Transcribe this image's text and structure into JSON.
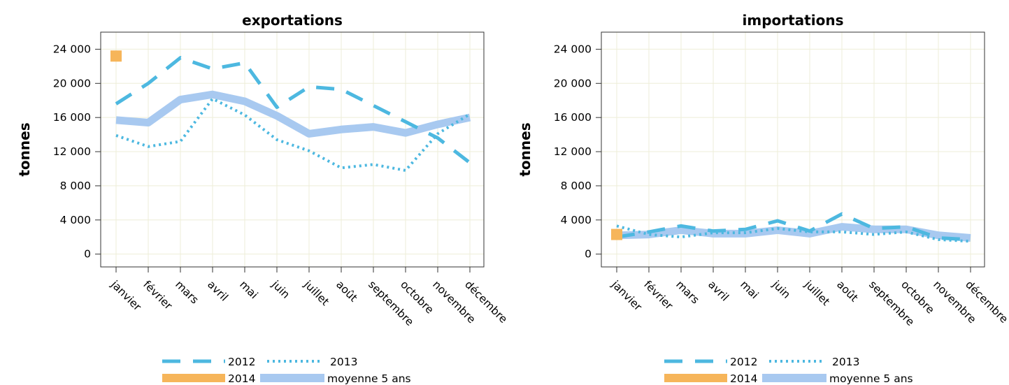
{
  "chart_data": [
    {
      "type": "line",
      "title": "exportations",
      "ylabel": "tonnes",
      "ylim": [
        -1500,
        26000
      ],
      "yticks": [
        0,
        4000,
        8000,
        12000,
        16000,
        20000,
        24000
      ],
      "ytick_labels": [
        "0",
        "4 000",
        "8 000",
        "12 000",
        "16 000",
        "20 000",
        "24 000"
      ],
      "categories": [
        "janvier",
        "février",
        "mars",
        "avril",
        "mai",
        "juin",
        "juillet",
        "août",
        "septembre",
        "octobre",
        "novembre",
        "décembre"
      ],
      "grid": true,
      "series": [
        {
          "name": "2012",
          "style": "dashed",
          "values": [
            17600,
            20000,
            23000,
            21700,
            22400,
            17200,
            19600,
            19300,
            17400,
            15500,
            13600,
            10700
          ]
        },
        {
          "name": "2013",
          "style": "dotted",
          "values": [
            13900,
            12600,
            13200,
            18200,
            16300,
            13400,
            12100,
            10100,
            10500,
            9800,
            14100,
            16400
          ]
        },
        {
          "name": "2014",
          "style": "point",
          "values": [
            23200,
            null,
            null,
            null,
            null,
            null,
            null,
            null,
            null,
            null,
            null,
            null
          ]
        },
        {
          "name": "moyenne 5 ans",
          "style": "thick",
          "values": [
            15700,
            15400,
            18100,
            18700,
            17900,
            16200,
            14100,
            14600,
            14900,
            14200,
            15200,
            16000
          ]
        }
      ]
    },
    {
      "type": "line",
      "title": "importations",
      "ylabel": "tonnes",
      "ylim": [
        -1500,
        26000
      ],
      "yticks": [
        0,
        4000,
        8000,
        12000,
        16000,
        20000,
        24000
      ],
      "ytick_labels": [
        "0",
        "4 000",
        "8 000",
        "12 000",
        "16 000",
        "20 000",
        "24 000"
      ],
      "categories": [
        "janvier",
        "février",
        "mars",
        "avril",
        "mai",
        "juin",
        "juillet",
        "août",
        "septembre",
        "octobre",
        "novembre",
        "décembre"
      ],
      "grid": true,
      "series": [
        {
          "name": "2012",
          "style": "dashed",
          "values": [
            2000,
            2600,
            3300,
            2700,
            2900,
            3900,
            2700,
            4700,
            3000,
            3200,
            1900,
            1700
          ]
        },
        {
          "name": "2013",
          "style": "dotted",
          "values": [
            3300,
            2300,
            2000,
            2500,
            2500,
            3000,
            2600,
            2600,
            2300,
            2600,
            1700,
            1500
          ]
        },
        {
          "name": "2014",
          "style": "point",
          "values": [
            2300,
            null,
            null,
            null,
            null,
            null,
            null,
            null,
            null,
            null,
            null,
            null
          ]
        },
        {
          "name": "moyenne 5 ans",
          "style": "thick",
          "values": [
            2200,
            2300,
            2800,
            2400,
            2400,
            2800,
            2400,
            3200,
            2900,
            2900,
            2200,
            1900
          ]
        }
      ]
    }
  ],
  "colors": {
    "line_2012": "#4db8e0",
    "line_2013": "#4db8e0",
    "point_2014": "#f6b55a",
    "line_moyenne": "#a8c9f0"
  },
  "legend": {
    "placement": "bottom",
    "entries": [
      "2012",
      "2013",
      "2014",
      "moyenne 5 ans"
    ]
  }
}
